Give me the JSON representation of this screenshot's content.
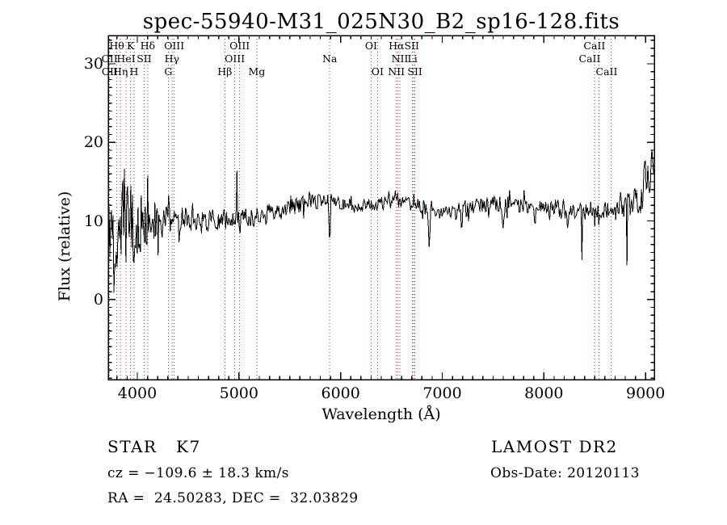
{
  "chart_data": {
    "type": "line",
    "title": "spec-55940-M31_025N30_B2_sp16-128.fits",
    "xlabel": "Wavelength (Å)",
    "ylabel": "Flux (relative)",
    "xlim": [
      3714,
      9086
    ],
    "ylim": [
      -10.2,
      33.6
    ],
    "xticks": [
      4000,
      5000,
      6000,
      7000,
      8000,
      9000
    ],
    "yticks": [
      0,
      10,
      20,
      30
    ],
    "x_minor_step": 100,
    "y_minor_step": 1,
    "grid": false,
    "legend": "none",
    "line_color": "#000000",
    "marker_line_color": "#a03838",
    "spectral_line_wavelengths": [
      3727,
      3798,
      3835,
      3889,
      3934,
      3968,
      4068,
      4102,
      4305,
      4340,
      4363,
      4861,
      4959,
      5007,
      5175,
      5893,
      6300,
      6363,
      6548,
      6563,
      6583,
      6707,
      6716,
      6731,
      8498,
      8542,
      8662
    ],
    "line_labels": [
      {
        "text": "Hθ",
        "wl": 3798,
        "row": 1
      },
      {
        "text": "K",
        "wl": 3934,
        "row": 1
      },
      {
        "text": "Hδ",
        "wl": 4102,
        "row": 1
      },
      {
        "text": "OIII",
        "wl": 4363,
        "row": 1
      },
      {
        "text": "OIII",
        "wl": 5007,
        "row": 1
      },
      {
        "text": "OI",
        "wl": 6300,
        "row": 1
      },
      {
        "text": "HαSII",
        "wl": 6623,
        "row": 1
      },
      {
        "text": "CaII",
        "wl": 8497,
        "row": 1
      },
      {
        "text": "OII",
        "wl": 3727,
        "row": 2
      },
      {
        "text": "HeI",
        "wl": 3889,
        "row": 2
      },
      {
        "text": "SII",
        "wl": 4068,
        "row": 2
      },
      {
        "text": "Hγ",
        "wl": 4340,
        "row": 2
      },
      {
        "text": "OIII",
        "wl": 4959,
        "row": 2
      },
      {
        "text": "Na",
        "wl": 5893,
        "row": 2
      },
      {
        "text": "NII",
        "wl": 6583,
        "row": 2
      },
      {
        "text": "Li",
        "wl": 6707,
        "row": 2
      },
      {
        "text": "CaII",
        "wl": 8450,
        "row": 2
      },
      {
        "text": "OII",
        "wl": 3729,
        "row": 3
      },
      {
        "text": "Hη",
        "wl": 3835,
        "row": 3
      },
      {
        "text": "H",
        "wl": 3968,
        "row": 3
      },
      {
        "text": "G",
        "wl": 4305,
        "row": 3
      },
      {
        "text": "Hβ",
        "wl": 4861,
        "row": 3
      },
      {
        "text": "Mg",
        "wl": 5175,
        "row": 3
      },
      {
        "text": "OI",
        "wl": 6363,
        "row": 3
      },
      {
        "text": "NII",
        "wl": 6548,
        "row": 3
      },
      {
        "text": "SII",
        "wl": 6731,
        "row": 3
      },
      {
        "text": "CaII",
        "wl": 8617,
        "row": 3
      }
    ],
    "spectrum": {
      "seed": 20120113,
      "n_points": 680,
      "clip": [
        -9.55,
        33.3
      ],
      "spike_prob": 0.12,
      "spike_scale": 2.0,
      "continuum": [
        [
          3714,
          9.0
        ],
        [
          3800,
          9.0
        ],
        [
          3950,
          9.5
        ],
        [
          4100,
          9.5
        ],
        [
          4300,
          10.0
        ],
        [
          4500,
          10.2
        ],
        [
          4700,
          10.0
        ],
        [
          4900,
          10.3
        ],
        [
          5100,
          10.3
        ],
        [
          5300,
          11.0
        ],
        [
          5600,
          12.0
        ],
        [
          5800,
          12.6
        ],
        [
          5950,
          12.4
        ],
        [
          6100,
          11.8
        ],
        [
          6250,
          12.0
        ],
        [
          6450,
          12.3
        ],
        [
          6563,
          12.6
        ],
        [
          6700,
          12.2
        ],
        [
          6900,
          11.2
        ],
        [
          7100,
          11.0
        ],
        [
          7300,
          11.6
        ],
        [
          7500,
          12.2
        ],
        [
          7800,
          12.0
        ],
        [
          8000,
          11.6
        ],
        [
          8200,
          11.2
        ],
        [
          8400,
          11.2
        ],
        [
          8600,
          11.4
        ],
        [
          8800,
          11.6
        ],
        [
          8950,
          13.0
        ],
        [
          9086,
          15.5
        ]
      ],
      "noise_sigma": [
        [
          3714,
          9.5
        ],
        [
          3780,
          8.5
        ],
        [
          3850,
          6.5
        ],
        [
          3950,
          5.0
        ],
        [
          4050,
          3.6
        ],
        [
          4200,
          2.6
        ],
        [
          4400,
          1.8
        ],
        [
          4700,
          1.4
        ],
        [
          5000,
          1.3
        ],
        [
          5400,
          1.1
        ],
        [
          6000,
          1.0
        ],
        [
          6500,
          0.9
        ],
        [
          7000,
          0.9
        ],
        [
          7600,
          1.0
        ],
        [
          8200,
          1.0
        ],
        [
          8600,
          1.1
        ],
        [
          8800,
          1.8
        ],
        [
          8950,
          2.8
        ],
        [
          9086,
          3.2
        ]
      ],
      "features": [
        {
          "wl": 4980,
          "delta": 6.5,
          "width": 4
        },
        {
          "wl": 5893,
          "delta": -6.5,
          "width": 12
        },
        {
          "wl": 6563,
          "delta": 1.8,
          "width": 6
        },
        {
          "wl": 6870,
          "delta": -5.0,
          "width": 16
        },
        {
          "wl": 7190,
          "delta": -2.5,
          "width": 12
        },
        {
          "wl": 7600,
          "delta": -3.5,
          "width": 14
        },
        {
          "wl": 7913,
          "delta": -5.5,
          "width": 8
        },
        {
          "wl": 8230,
          "delta": -2.5,
          "width": 8
        },
        {
          "wl": 8373,
          "delta": -6.5,
          "width": 7
        },
        {
          "wl": 8498,
          "delta": -2.0,
          "width": 5
        },
        {
          "wl": 8542,
          "delta": -2.5,
          "width": 5
        },
        {
          "wl": 8662,
          "delta": -2.2,
          "width": 5
        },
        {
          "wl": 8815,
          "delta": -12.5,
          "width": 6
        },
        {
          "wl": 9010,
          "delta": 3.0,
          "width": 30
        },
        {
          "wl": 9065,
          "delta": 5.0,
          "width": 15
        }
      ]
    }
  },
  "footer": {
    "object_class": "STAR   K7",
    "survey": "LAMOST DR2",
    "cz": "cz = −109.6 ± 18.3 km/s",
    "obs_date": "Obs-Date: 20120113",
    "ra_dec": "RA =  24.50283, DEC =  32.03829"
  }
}
